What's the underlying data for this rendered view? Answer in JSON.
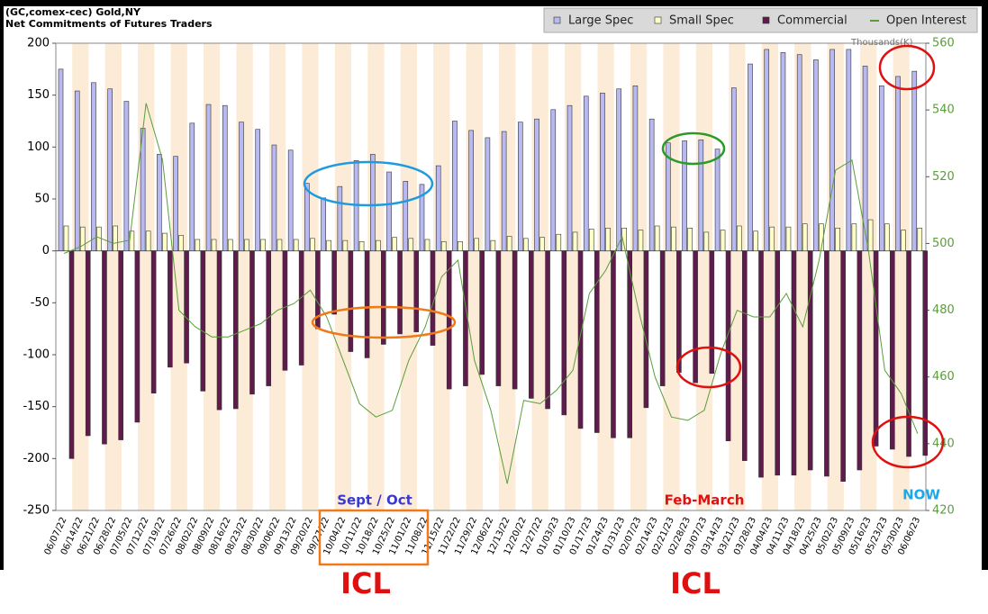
{
  "chart_data": {
    "type": "bar",
    "title": "(GC,comex-cec) Gold,NY",
    "subtitle": "Net Commitments of Futures Traders",
    "y2_label": "Thousands(K)",
    "categories": [
      "06/07/22",
      "06/14/22",
      "06/21/22",
      "06/28/22",
      "07/05/22",
      "07/12/22",
      "07/19/22",
      "07/26/22",
      "08/02/22",
      "08/09/22",
      "08/16/22",
      "08/23/22",
      "08/30/22",
      "09/06/22",
      "09/13/22",
      "09/20/22",
      "09/27/22",
      "10/04/22",
      "10/11/22",
      "10/18/22",
      "10/25/22",
      "11/01/22",
      "11/08/22",
      "11/15/22",
      "11/22/22",
      "11/29/22",
      "12/06/22",
      "12/13/22",
      "12/20/22",
      "12/27/22",
      "01/03/23",
      "01/10/23",
      "01/17/23",
      "01/24/23",
      "01/31/23",
      "02/07/23",
      "02/14/23",
      "02/21/23",
      "02/28/23",
      "03/07/23",
      "03/14/23",
      "03/21/23",
      "03/28/23",
      "04/04/23",
      "04/11/23",
      "04/18/23",
      "04/25/23",
      "05/02/23",
      "05/09/23",
      "05/16/23",
      "05/23/23",
      "05/30/23",
      "06/06/23"
    ],
    "series": [
      {
        "name": "Large Spec",
        "color": "#b9b9f2",
        "values": [
          175,
          154,
          162,
          156,
          144,
          118,
          93,
          91,
          123,
          141,
          140,
          124,
          117,
          102,
          97,
          65,
          51,
          62,
          87,
          93,
          76,
          67,
          64,
          82,
          125,
          116,
          109,
          115,
          124,
          127,
          136,
          140,
          149,
          152,
          156,
          159,
          127,
          104,
          106,
          107,
          98,
          157,
          180,
          194,
          191,
          189,
          184,
          194,
          194,
          178,
          159,
          168,
          173
        ]
      },
      {
        "name": "Small Spec",
        "color": "#ffffc8",
        "values": [
          24,
          23,
          23,
          24,
          19,
          19,
          17,
          15,
          11,
          11,
          11,
          11,
          11,
          11,
          11,
          12,
          10,
          10,
          9,
          10,
          13,
          12,
          11,
          9,
          9,
          12,
          10,
          14,
          12,
          13,
          16,
          18,
          21,
          22,
          22,
          20,
          24,
          23,
          22,
          18,
          20,
          24,
          19,
          23,
          23,
          26,
          26,
          22,
          26,
          30,
          26,
          20,
          22
        ]
      },
      {
        "name": "Commercial",
        "color": "#5e1b4c",
        "values": [
          -200,
          -178,
          -186,
          -182,
          -165,
          -137,
          -112,
          -108,
          -135,
          -153,
          -152,
          -138,
          -130,
          -115,
          -110,
          -75,
          -61,
          -97,
          -103,
          -90,
          -80,
          -78,
          -91,
          -133,
          -130,
          -119,
          -130,
          -133,
          -142,
          -152,
          -158,
          -171,
          -175,
          -180,
          -180,
          -151,
          -130,
          -117,
          -127,
          -118,
          -183,
          -202,
          -218,
          -216,
          -216,
          -211,
          -217,
          -222,
          -211,
          -188,
          -191,
          -198,
          -197
        ]
      },
      {
        "name": "Open Interest",
        "color": "#5a9e3a",
        "axis": "y2",
        "type": "line",
        "values": [
          497,
          499,
          502,
          500,
          501,
          542,
          525,
          480,
          475,
          472,
          472,
          474,
          476,
          480,
          482,
          486,
          478,
          465,
          452,
          448,
          450,
          465,
          475,
          490,
          495,
          465,
          450,
          428,
          453,
          452,
          456,
          462,
          485,
          492,
          502,
          480,
          460,
          448,
          447,
          450,
          467,
          480,
          478,
          478,
          485,
          475,
          495,
          522,
          525,
          498,
          462,
          455,
          443
        ]
      }
    ],
    "ylim": [
      -250,
      200
    ],
    "yticks": [
      -250,
      -200,
      -150,
      -100,
      -50,
      0,
      50,
      100,
      150,
      200
    ],
    "y2lim": [
      420,
      560
    ],
    "y2ticks": [
      420,
      440,
      460,
      480,
      500,
      520,
      540,
      560
    ],
    "legend": "top-right",
    "annotations": [
      "Sept / Oct",
      "Feb-March",
      "NOW",
      "ICL",
      "ICL"
    ]
  }
}
